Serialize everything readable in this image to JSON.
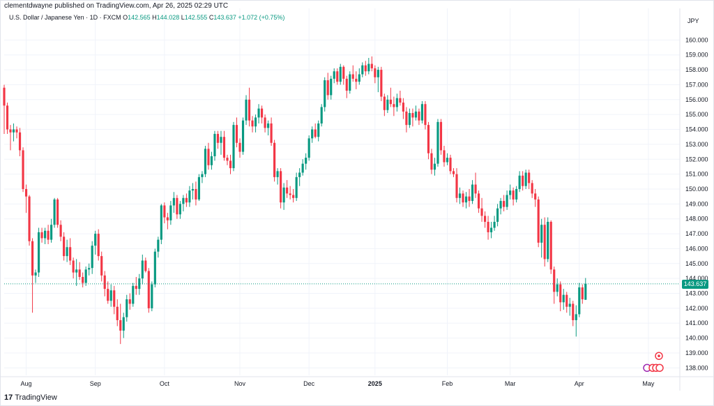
{
  "header": {
    "published": "clementdwayne published on TradingView.com, Apr 26, 2025 02:29 UTC",
    "symbol": "U.S. Dollar / Japanese Yen · 1D · FXCM",
    "open_label": "O",
    "open": "142.565",
    "high_label": "H",
    "high": "144.028",
    "low_label": "L",
    "low": "142.555",
    "close_label": "C",
    "close": "143.637",
    "change": "+1.072 (+0.75%)"
  },
  "currency": "JPY",
  "last_price": "143.637",
  "footer": {
    "brand": "TradingView",
    "logo": "17"
  },
  "colors": {
    "up": "#089981",
    "down": "#f23645",
    "grid": "#f0f3fa",
    "axis_text": "#131722"
  },
  "chart_data": {
    "type": "candlestick",
    "title": "U.S. Dollar / Japanese Yen · 1D · FXCM",
    "ylim": [
      137.5,
      161.0
    ],
    "y_ticks": [
      138,
      139,
      140,
      141,
      142,
      143,
      144,
      145,
      146,
      147,
      148,
      149,
      150,
      151,
      152,
      153,
      154,
      155,
      156,
      157,
      158,
      159,
      160
    ],
    "y_tick_labels": [
      "138.000",
      "139.000",
      "140.000",
      "141.000",
      "142.000",
      "143.000",
      "144.000",
      "145.000",
      "146.000",
      "147.000",
      "148.000",
      "149.000",
      "150.000",
      "151.000",
      "152.000",
      "153.000",
      "154.000",
      "155.000",
      "156.000",
      "157.000",
      "158.000",
      "159.000",
      "160.000"
    ],
    "x_range": [
      0,
      215
    ],
    "x_ticks": [
      {
        "label": "Aug",
        "x": 7
      },
      {
        "label": "Sep",
        "x": 29
      },
      {
        "label": "Oct",
        "x": 51
      },
      {
        "label": "Nov",
        "x": 75
      },
      {
        "label": "Dec",
        "x": 97
      },
      {
        "label": "2025",
        "x": 118
      },
      {
        "label": "Feb",
        "x": 141
      },
      {
        "label": "Mar",
        "x": 161
      },
      {
        "label": "Apr",
        "x": 183
      },
      {
        "label": "May",
        "x": 205
      }
    ],
    "grid": true,
    "last_close": 143.637,
    "candles": [
      [
        156.8,
        157.0,
        153.7,
        155.6
      ],
      [
        155.6,
        155.8,
        153.7,
        154.0
      ],
      [
        154.0,
        154.3,
        152.6,
        153.8
      ],
      [
        153.8,
        154.4,
        153.2,
        154.0
      ],
      [
        154.0,
        154.2,
        153.4,
        153.8
      ],
      [
        153.8,
        154.1,
        152.2,
        152.6
      ],
      [
        152.6,
        152.8,
        149.8,
        150.0
      ],
      [
        150.0,
        150.3,
        148.4,
        149.5
      ],
      [
        149.5,
        149.6,
        146.2,
        146.5
      ],
      [
        146.5,
        146.7,
        141.7,
        144.2
      ],
      [
        144.2,
        144.6,
        143.7,
        144.4
      ],
      [
        144.4,
        147.4,
        144.1,
        147.1
      ],
      [
        147.1,
        147.4,
        146.4,
        146.7
      ],
      [
        146.7,
        147.4,
        146.3,
        147.2
      ],
      [
        147.2,
        147.6,
        146.3,
        146.6
      ],
      [
        146.6,
        148.0,
        146.4,
        147.6
      ],
      [
        147.6,
        149.4,
        147.4,
        149.3
      ],
      [
        149.3,
        149.4,
        147.4,
        147.6
      ],
      [
        147.6,
        147.9,
        146.5,
        146.8
      ],
      [
        146.8,
        147.1,
        145.2,
        145.5
      ],
      [
        145.5,
        146.6,
        145.1,
        146.1
      ],
      [
        146.1,
        146.7,
        144.9,
        145.2
      ],
      [
        145.2,
        145.4,
        144.0,
        144.4
      ],
      [
        144.4,
        145.3,
        143.5,
        144.6
      ],
      [
        144.6,
        145.1,
        143.9,
        144.1
      ],
      [
        144.1,
        144.4,
        143.4,
        143.7
      ],
      [
        143.7,
        144.8,
        143.5,
        144.6
      ],
      [
        144.6,
        145.0,
        144.2,
        144.7
      ],
      [
        144.7,
        146.5,
        144.3,
        146.2
      ],
      [
        146.2,
        147.2,
        145.6,
        147.0
      ],
      [
        147.0,
        147.3,
        145.2,
        145.5
      ],
      [
        145.5,
        145.8,
        143.8,
        144.2
      ],
      [
        144.2,
        144.5,
        142.8,
        143.3
      ],
      [
        143.3,
        143.8,
        142.3,
        142.5
      ],
      [
        142.5,
        143.6,
        142.1,
        143.2
      ],
      [
        143.2,
        143.5,
        141.6,
        142.1
      ],
      [
        142.1,
        142.6,
        140.8,
        141.2
      ],
      [
        141.2,
        142.3,
        139.6,
        140.5
      ],
      [
        140.5,
        141.7,
        140.0,
        141.4
      ],
      [
        141.4,
        142.9,
        141.1,
        142.6
      ],
      [
        142.6,
        143.0,
        141.9,
        142.3
      ],
      [
        142.3,
        143.7,
        142.1,
        143.5
      ],
      [
        143.5,
        144.1,
        142.9,
        143.3
      ],
      [
        143.3,
        144.3,
        142.9,
        144.0
      ],
      [
        144.0,
        145.6,
        143.6,
        145.2
      ],
      [
        145.2,
        145.4,
        144.4,
        144.5
      ],
      [
        144.5,
        144.7,
        141.7,
        142.0
      ],
      [
        142.0,
        143.8,
        141.8,
        143.6
      ],
      [
        143.6,
        146.0,
        143.4,
        145.8
      ],
      [
        145.8,
        146.8,
        145.4,
        146.6
      ],
      [
        146.6,
        149.0,
        146.3,
        148.9
      ],
      [
        148.9,
        149.1,
        147.7,
        148.1
      ],
      [
        148.1,
        148.4,
        147.3,
        147.9
      ],
      [
        147.9,
        149.2,
        147.6,
        148.9
      ],
      [
        148.9,
        149.8,
        148.4,
        149.4
      ],
      [
        149.4,
        149.6,
        148.0,
        148.3
      ],
      [
        148.3,
        149.2,
        148.0,
        149.0
      ],
      [
        149.0,
        149.6,
        148.5,
        149.4
      ],
      [
        149.4,
        149.7,
        148.8,
        149.1
      ],
      [
        149.1,
        150.2,
        148.8,
        149.9
      ],
      [
        149.9,
        150.4,
        149.3,
        150.0
      ],
      [
        150.0,
        150.5,
        148.9,
        149.3
      ],
      [
        149.3,
        151.0,
        149.2,
        150.8
      ],
      [
        150.8,
        151.2,
        150.4,
        151.0
      ],
      [
        151.0,
        152.9,
        150.8,
        152.7
      ],
      [
        152.7,
        153.1,
        151.3,
        151.6
      ],
      [
        151.6,
        152.5,
        151.3,
        152.2
      ],
      [
        152.2,
        153.9,
        151.9,
        153.7
      ],
      [
        153.7,
        153.9,
        152.7,
        153.1
      ],
      [
        153.1,
        153.9,
        152.3,
        153.5
      ],
      [
        153.5,
        153.9,
        151.9,
        152.1
      ],
      [
        152.1,
        152.3,
        151.6,
        151.9
      ],
      [
        151.9,
        152.3,
        151.0,
        151.4
      ],
      [
        151.4,
        154.5,
        151.2,
        154.3
      ],
      [
        154.3,
        154.8,
        152.8,
        153.1
      ],
      [
        153.1,
        153.4,
        152.1,
        152.5
      ],
      [
        152.5,
        154.8,
        152.3,
        154.6
      ],
      [
        154.6,
        156.3,
        154.3,
        156.0
      ],
      [
        156.0,
        156.8,
        154.2,
        154.6
      ],
      [
        154.6,
        154.9,
        153.8,
        154.2
      ],
      [
        154.2,
        155.0,
        153.8,
        154.8
      ],
      [
        154.8,
        155.7,
        154.4,
        155.4
      ],
      [
        155.4,
        155.6,
        154.4,
        154.8
      ],
      [
        154.8,
        155.0,
        153.8,
        154.1
      ],
      [
        154.1,
        154.6,
        153.6,
        154.4
      ],
      [
        154.4,
        154.8,
        152.9,
        153.1
      ],
      [
        153.1,
        153.3,
        150.5,
        150.8
      ],
      [
        150.8,
        151.4,
        150.3,
        151.2
      ],
      [
        151.2,
        151.4,
        148.7,
        149.1
      ],
      [
        149.1,
        150.4,
        148.6,
        150.1
      ],
      [
        150.1,
        150.6,
        149.4,
        149.7
      ],
      [
        149.7,
        150.2,
        149.3,
        149.6
      ],
      [
        149.6,
        150.0,
        149.1,
        149.4
      ],
      [
        149.4,
        151.1,
        149.2,
        150.8
      ],
      [
        150.8,
        151.4,
        150.2,
        151.1
      ],
      [
        151.1,
        152.0,
        150.9,
        151.7
      ],
      [
        151.7,
        152.4,
        151.3,
        152.1
      ],
      [
        152.1,
        153.6,
        151.9,
        153.4
      ],
      [
        153.4,
        154.2,
        153.1,
        154.0
      ],
      [
        154.0,
        154.4,
        153.4,
        153.5
      ],
      [
        153.5,
        154.6,
        153.2,
        154.4
      ],
      [
        154.4,
        155.7,
        154.2,
        155.5
      ],
      [
        155.5,
        157.5,
        155.2,
        157.3
      ],
      [
        157.3,
        157.8,
        156.0,
        156.3
      ],
      [
        156.3,
        157.6,
        156.0,
        157.4
      ],
      [
        157.4,
        158.1,
        157.1,
        157.9
      ],
      [
        157.9,
        158.1,
        157.0,
        157.2
      ],
      [
        157.2,
        158.4,
        157.0,
        158.2
      ],
      [
        158.2,
        158.3,
        157.0,
        157.4
      ],
      [
        157.4,
        157.6,
        156.1,
        156.6
      ],
      [
        156.6,
        157.9,
        156.4,
        157.7
      ],
      [
        157.7,
        158.3,
        157.2,
        157.4
      ],
      [
        157.4,
        157.9,
        156.7,
        157.2
      ],
      [
        157.2,
        158.1,
        157.0,
        157.7
      ],
      [
        157.7,
        158.5,
        157.5,
        158.3
      ],
      [
        158.3,
        158.6,
        157.6,
        157.9
      ],
      [
        157.9,
        158.8,
        157.7,
        158.4
      ],
      [
        158.4,
        158.9,
        157.9,
        158.1
      ],
      [
        158.1,
        158.3,
        157.1,
        157.5
      ],
      [
        157.5,
        158.2,
        156.5,
        158.0
      ],
      [
        158.0,
        158.2,
        155.9,
        156.2
      ],
      [
        156.2,
        156.4,
        154.9,
        155.3
      ],
      [
        155.3,
        156.3,
        155.1,
        156.0
      ],
      [
        156.0,
        156.8,
        155.5,
        155.7
      ],
      [
        155.7,
        156.2,
        154.9,
        155.5
      ],
      [
        155.5,
        156.4,
        155.2,
        156.1
      ],
      [
        156.1,
        156.6,
        155.6,
        155.8
      ],
      [
        155.8,
        156.1,
        154.7,
        155.2
      ],
      [
        155.2,
        155.5,
        153.8,
        154.3
      ],
      [
        154.3,
        155.4,
        154.1,
        155.1
      ],
      [
        155.1,
        155.4,
        154.2,
        154.8
      ],
      [
        154.8,
        155.6,
        154.6,
        155.2
      ],
      [
        155.2,
        155.4,
        154.3,
        154.6
      ],
      [
        154.6,
        155.9,
        154.4,
        155.7
      ],
      [
        155.7,
        155.9,
        154.0,
        154.3
      ],
      [
        154.3,
        154.5,
        152.0,
        152.4
      ],
      [
        152.4,
        152.7,
        151.0,
        151.3
      ],
      [
        151.3,
        152.1,
        150.9,
        151.7
      ],
      [
        151.7,
        154.7,
        151.5,
        154.5
      ],
      [
        154.5,
        154.7,
        152.3,
        152.6
      ],
      [
        152.6,
        152.9,
        151.5,
        151.8
      ],
      [
        151.8,
        152.4,
        151.6,
        152.1
      ],
      [
        152.1,
        152.3,
        151.0,
        151.2
      ],
      [
        151.2,
        151.4,
        150.8,
        151.0
      ],
      [
        151.0,
        151.4,
        149.1,
        149.4
      ],
      [
        149.4,
        150.1,
        149.0,
        149.7
      ],
      [
        149.7,
        149.9,
        148.8,
        149.1
      ],
      [
        149.1,
        149.8,
        148.7,
        149.5
      ],
      [
        149.5,
        150.0,
        148.8,
        149.2
      ],
      [
        149.2,
        150.6,
        149.0,
        150.3
      ],
      [
        150.3,
        151.1,
        149.4,
        149.7
      ],
      [
        149.7,
        149.9,
        148.4,
        148.7
      ],
      [
        148.7,
        149.4,
        147.8,
        148.2
      ],
      [
        148.2,
        148.5,
        147.4,
        147.8
      ],
      [
        147.8,
        148.2,
        146.6,
        147.1
      ],
      [
        147.1,
        147.8,
        146.7,
        147.4
      ],
      [
        147.4,
        148.2,
        147.2,
        147.8
      ],
      [
        147.8,
        149.0,
        147.5,
        148.7
      ],
      [
        148.7,
        149.4,
        148.3,
        149.2
      ],
      [
        149.2,
        149.6,
        148.5,
        148.8
      ],
      [
        148.8,
        149.9,
        148.6,
        149.6
      ],
      [
        149.6,
        150.3,
        149.3,
        149.9
      ],
      [
        149.9,
        150.1,
        148.9,
        149.3
      ],
      [
        149.3,
        150.2,
        149.1,
        150.0
      ],
      [
        150.0,
        151.2,
        149.8,
        150.9
      ],
      [
        150.9,
        151.2,
        149.9,
        150.2
      ],
      [
        150.2,
        151.3,
        150.0,
        151.1
      ],
      [
        151.1,
        151.3,
        150.0,
        150.4
      ],
      [
        150.4,
        150.6,
        149.4,
        149.7
      ],
      [
        149.7,
        150.0,
        148.8,
        149.3
      ],
      [
        149.3,
        149.5,
        146.1,
        146.4
      ],
      [
        146.4,
        148.0,
        145.4,
        147.6
      ],
      [
        147.6,
        148.1,
        144.8,
        145.3
      ],
      [
        145.3,
        148.1,
        145.1,
        147.8
      ],
      [
        147.8,
        147.9,
        144.3,
        144.6
      ],
      [
        144.6,
        144.8,
        142.3,
        143.1
      ],
      [
        143.1,
        144.0,
        142.8,
        143.6
      ],
      [
        143.6,
        143.8,
        141.8,
        142.4
      ],
      [
        142.4,
        143.3,
        141.9,
        142.9
      ],
      [
        142.9,
        143.1,
        141.7,
        142.1
      ],
      [
        142.1,
        142.7,
        141.5,
        142.3
      ],
      [
        142.3,
        142.5,
        140.8,
        141.2
      ],
      [
        141.2,
        142.2,
        140.1,
        141.6
      ],
      [
        141.6,
        143.7,
        141.4,
        143.4
      ],
      [
        143.4,
        143.6,
        142.3,
        142.6
      ],
      [
        142.57,
        144.03,
        142.56,
        143.64
      ]
    ],
    "x_start": 0,
    "markers": [
      {
        "label": "event-marker",
        "price": 138.8
      },
      {
        "label": "event-marker",
        "price": 138.0
      }
    ]
  }
}
